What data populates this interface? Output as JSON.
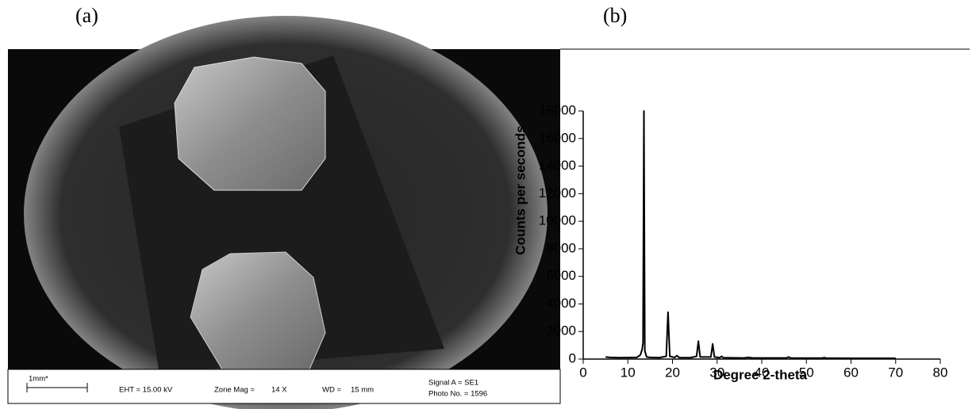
{
  "panel_labels": {
    "a": "(a)",
    "b": "(b)"
  },
  "sem_image": {
    "scale_bar": "1mm*",
    "eht": "EHT = 15.00 kV",
    "zone_mag_label": "Zone Mag =",
    "zone_mag": "14 X",
    "wd_label": "WD =",
    "wd": "15 mm",
    "signal": "Signal A = SE1",
    "photo": "Photo No. = 1596"
  },
  "chart_data": {
    "type": "line",
    "xlabel": "Degree 2-theta",
    "ylabel": "Counts per seconds",
    "series": [
      {
        "color": "#000000",
        "x": [
          5,
          6,
          8,
          10,
          12,
          12.8,
          13.2,
          13.4,
          13.6,
          13.8,
          14.2,
          15,
          17,
          18.6,
          19.0,
          19.4,
          20.5,
          21,
          21.5,
          24,
          25.4,
          25.8,
          26.2,
          28.6,
          29,
          29.4,
          30.6,
          31,
          31.4,
          36,
          37,
          38,
          45.5,
          46,
          46.5,
          53.5,
          54,
          54.5,
          60,
          65,
          70
        ],
        "values": [
          150,
          120,
          100,
          110,
          120,
          300,
          700,
          1200,
          18000,
          600,
          150,
          120,
          100,
          200,
          3400,
          200,
          120,
          250,
          110,
          100,
          200,
          1300,
          150,
          150,
          1100,
          150,
          100,
          200,
          100,
          80,
          120,
          80,
          80,
          150,
          80,
          70,
          100,
          70,
          60,
          60,
          60
        ]
      }
    ],
    "xlim": [
      0,
      80
    ],
    "xticks": [
      0,
      10,
      20,
      30,
      40,
      50,
      60,
      70,
      80
    ],
    "ylim": [
      0,
      18000
    ],
    "yticks": [
      0,
      2000,
      4000,
      6000,
      8000,
      10000,
      12000,
      14000,
      16000,
      18000
    ]
  }
}
